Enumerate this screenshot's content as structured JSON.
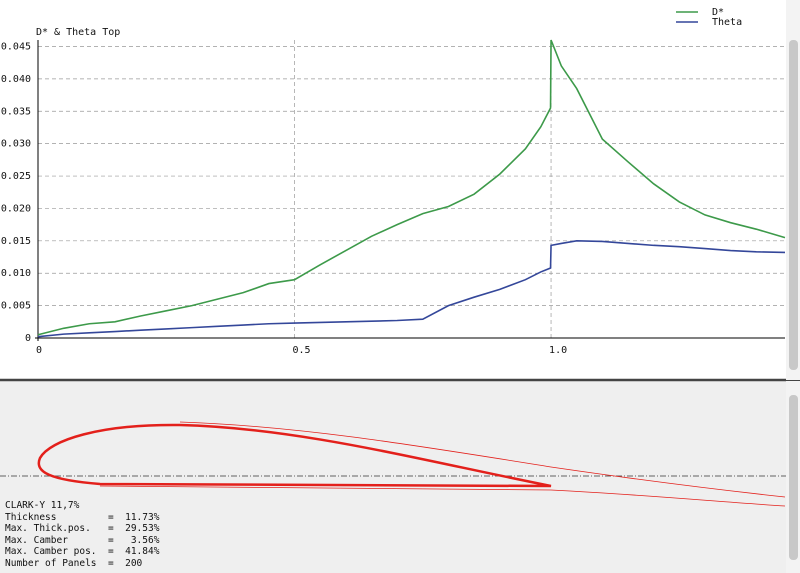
{
  "chart_data": {
    "type": "line",
    "title": "D* & Theta Top",
    "x": [
      0,
      0.05,
      0.1,
      0.15,
      0.2,
      0.25,
      0.3,
      0.35,
      0.4,
      0.45,
      0.5,
      0.55,
      0.6,
      0.65,
      0.7,
      0.75,
      0.8,
      0.85,
      0.9,
      0.95,
      0.98,
      0.999,
      1.0,
      1.02,
      1.05,
      1.1,
      1.15,
      1.2,
      1.25,
      1.3,
      1.35,
      1.4,
      1.456
    ],
    "series": [
      {
        "name": "D*",
        "color": "#3d9a4a",
        "values": [
          0.0005,
          0.0015,
          0.0022,
          0.0025,
          0.0034,
          0.0042,
          0.005,
          0.006,
          0.007,
          0.0084,
          0.009,
          0.0113,
          0.0135,
          0.0157,
          0.0175,
          0.0192,
          0.0203,
          0.0222,
          0.0253,
          0.0292,
          0.0326,
          0.0355,
          0.046,
          0.042,
          0.0385,
          0.0307,
          0.0272,
          0.0238,
          0.021,
          0.019,
          0.0178,
          0.0168,
          0.0155
        ]
      },
      {
        "name": "Theta",
        "color": "#34479a",
        "values": [
          0.0002,
          0.0006,
          0.0008,
          0.001,
          0.0012,
          0.0014,
          0.0016,
          0.0018,
          0.002,
          0.0022,
          0.0023,
          0.0024,
          0.0025,
          0.0026,
          0.0027,
          0.0029,
          0.005,
          0.0063,
          0.0075,
          0.009,
          0.0102,
          0.0108,
          0.0143,
          0.0146,
          0.015,
          0.0149,
          0.0146,
          0.0143,
          0.0141,
          0.0138,
          0.0135,
          0.0133,
          0.0132
        ]
      }
    ],
    "xlim": [
      0,
      1.456
    ],
    "ylim": [
      0,
      0.046
    ],
    "xticks": [
      0,
      0.5,
      {
        "value": 1,
        "label": "1.0"
      }
    ],
    "yticks": [
      0,
      0.005,
      {
        "value": 0.01,
        "label": "0.010"
      },
      0.015,
      {
        "value": 0.02,
        "label": "0.020"
      },
      0.025,
      {
        "value": 0.03,
        "label": "0.030"
      },
      0.035,
      {
        "value": 0.04,
        "label": "0.040"
      },
      0.045
    ],
    "grid": true,
    "legend": "top-right"
  },
  "airfoil_info": {
    "lines": [
      "CLARK-Y 11,7%",
      "Thickness         =  11.73%",
      "Max. Thick.pos.   =  29.53%",
      "Max. Camber       =   3.56%",
      "Max. Camber pos.  =  41.84%",
      "Number of Panels  =  200"
    ]
  }
}
